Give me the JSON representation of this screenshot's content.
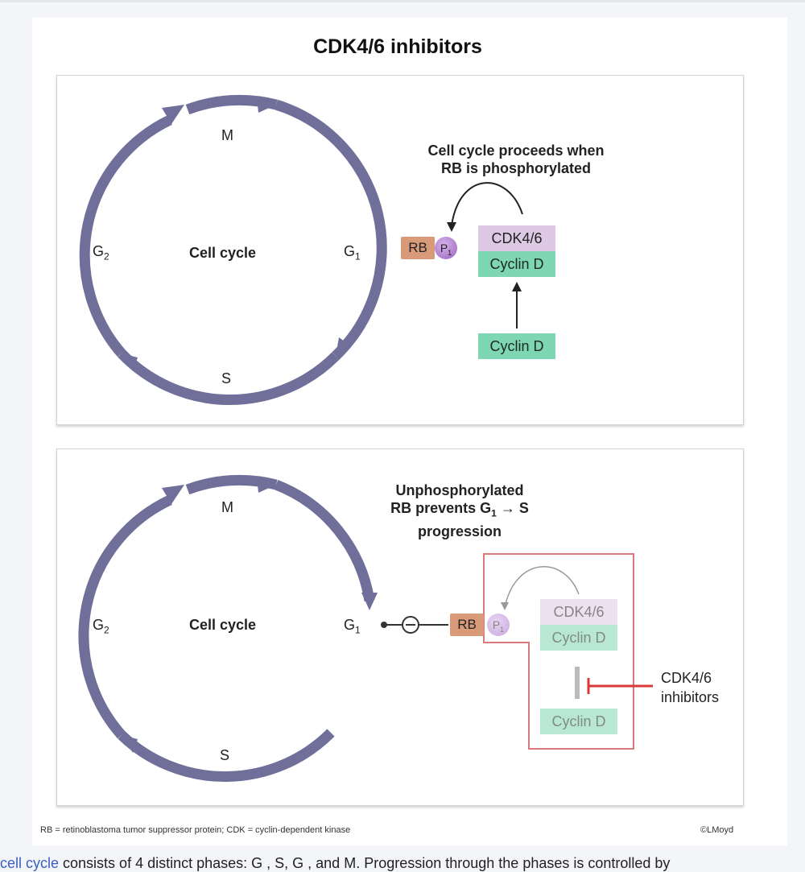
{
  "figure": {
    "title": "CDK4/6 inhibitors",
    "panel_top": {
      "cycle_label": "Cell cycle",
      "phase_m": "M",
      "phase_g2_base": "G",
      "phase_g2_sub": "2",
      "phase_g1_base": "G",
      "phase_g1_sub": "1",
      "phase_s": "S",
      "note_line1": "Cell cycle proceeds when",
      "note_line2": "RB is phosphorylated",
      "rb": "RB",
      "p_base": "P",
      "p_sub": "1",
      "cdk": "CDK4/6",
      "cyclin_bound": "Cyclin D",
      "cyclin_free": "Cyclin D"
    },
    "panel_bottom": {
      "cycle_label": "Cell cycle",
      "phase_m": "M",
      "phase_g2_base": "G",
      "phase_g2_sub": "2",
      "phase_g1_base": "G",
      "phase_g1_sub": "1",
      "phase_s": "S",
      "note_line1": "Unphosphorylated",
      "note_line2": "RB prevents G",
      "note_line2_sub": "1",
      "note_line2_tail": " → S",
      "note_line3": "progression",
      "rb": "RB",
      "p_base": "P",
      "p_sub": "1",
      "cdk": "CDK4/6",
      "cyclin_bound": "Cyclin D",
      "cyclin_free": "Cyclin D",
      "inhibitor_line1": "CDK4/6",
      "inhibitor_line2": "inhibitors",
      "block_symbol": "−"
    },
    "footer_legend": "RB = retinoblastoma tumor suppressor protein; CDK = cyclin-dependent kinase",
    "credit": "©LMoyd"
  },
  "caption": {
    "link_text": "cell cycle",
    "text": " consists of 4 distinct phases: G , S, G , and M. Progression through the phases is controlled by"
  },
  "colors": {
    "cycle_arrow": "#6f6f9a",
    "rb": "#d99a7a",
    "cdk": "#ddc9e3",
    "cyclin": "#7fd6b2",
    "inhibitor": "#d83a3a"
  }
}
